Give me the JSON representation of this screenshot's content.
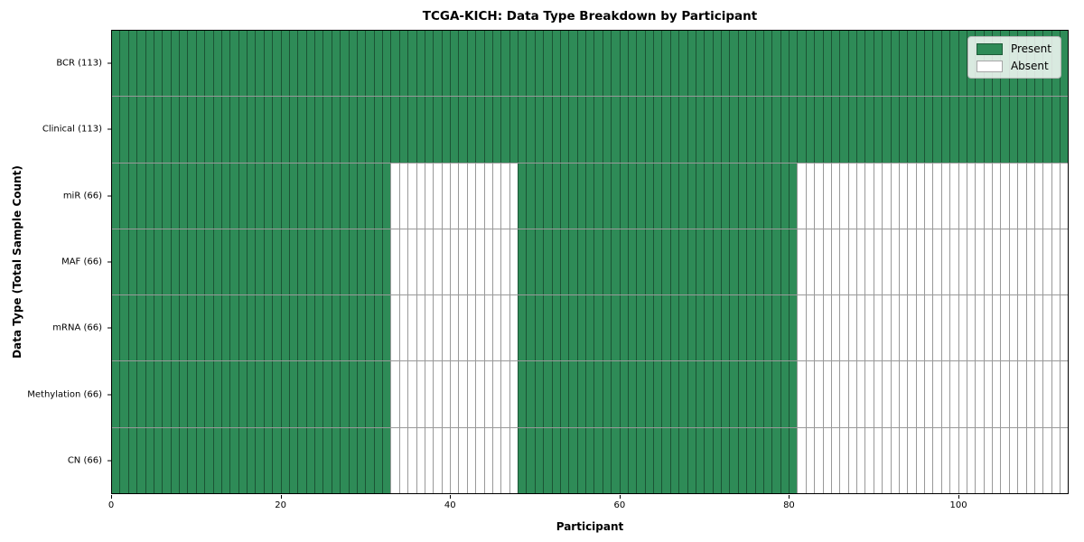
{
  "chart_data": {
    "type": "heatmap",
    "title": "TCGA-KICH: Data Type Breakdown by Participant",
    "xlabel": "Participant",
    "ylabel": "Data Type (Total Sample Count)",
    "n_participants": 113,
    "xlim": [
      0,
      113
    ],
    "x_ticks": [
      0,
      20,
      40,
      60,
      80,
      100
    ],
    "grid": "cell-edges",
    "colors": {
      "present": "#2e8b57",
      "absent": "#ffffff",
      "cell_edge": "rgba(0,0,0,0.40)"
    },
    "legend": {
      "position": "upper right",
      "entries": [
        {
          "label": "Present",
          "color": "#2e8b57"
        },
        {
          "label": "Absent",
          "color": "#ffffff"
        }
      ]
    },
    "rows": [
      {
        "label": "BCR (113)",
        "data_type": "BCR",
        "total_samples": 113,
        "present_ranges": [
          [
            0,
            113
          ]
        ]
      },
      {
        "label": "Clinical (113)",
        "data_type": "Clinical",
        "total_samples": 113,
        "present_ranges": [
          [
            0,
            113
          ]
        ]
      },
      {
        "label": "miR (66)",
        "data_type": "miR",
        "total_samples": 66,
        "present_ranges": [
          [
            0,
            33
          ],
          [
            48,
            81
          ]
        ]
      },
      {
        "label": "MAF (66)",
        "data_type": "MAF",
        "total_samples": 66,
        "present_ranges": [
          [
            0,
            33
          ],
          [
            48,
            81
          ]
        ]
      },
      {
        "label": "mRNA (66)",
        "data_type": "mRNA",
        "total_samples": 66,
        "present_ranges": [
          [
            0,
            33
          ],
          [
            48,
            81
          ]
        ]
      },
      {
        "label": "Methylation (66)",
        "data_type": "Methylation",
        "total_samples": 66,
        "present_ranges": [
          [
            0,
            33
          ],
          [
            48,
            81
          ]
        ]
      },
      {
        "label": "CN (66)",
        "data_type": "CN",
        "total_samples": 66,
        "present_ranges": [
          [
            0,
            33
          ],
          [
            48,
            81
          ]
        ]
      }
    ]
  }
}
